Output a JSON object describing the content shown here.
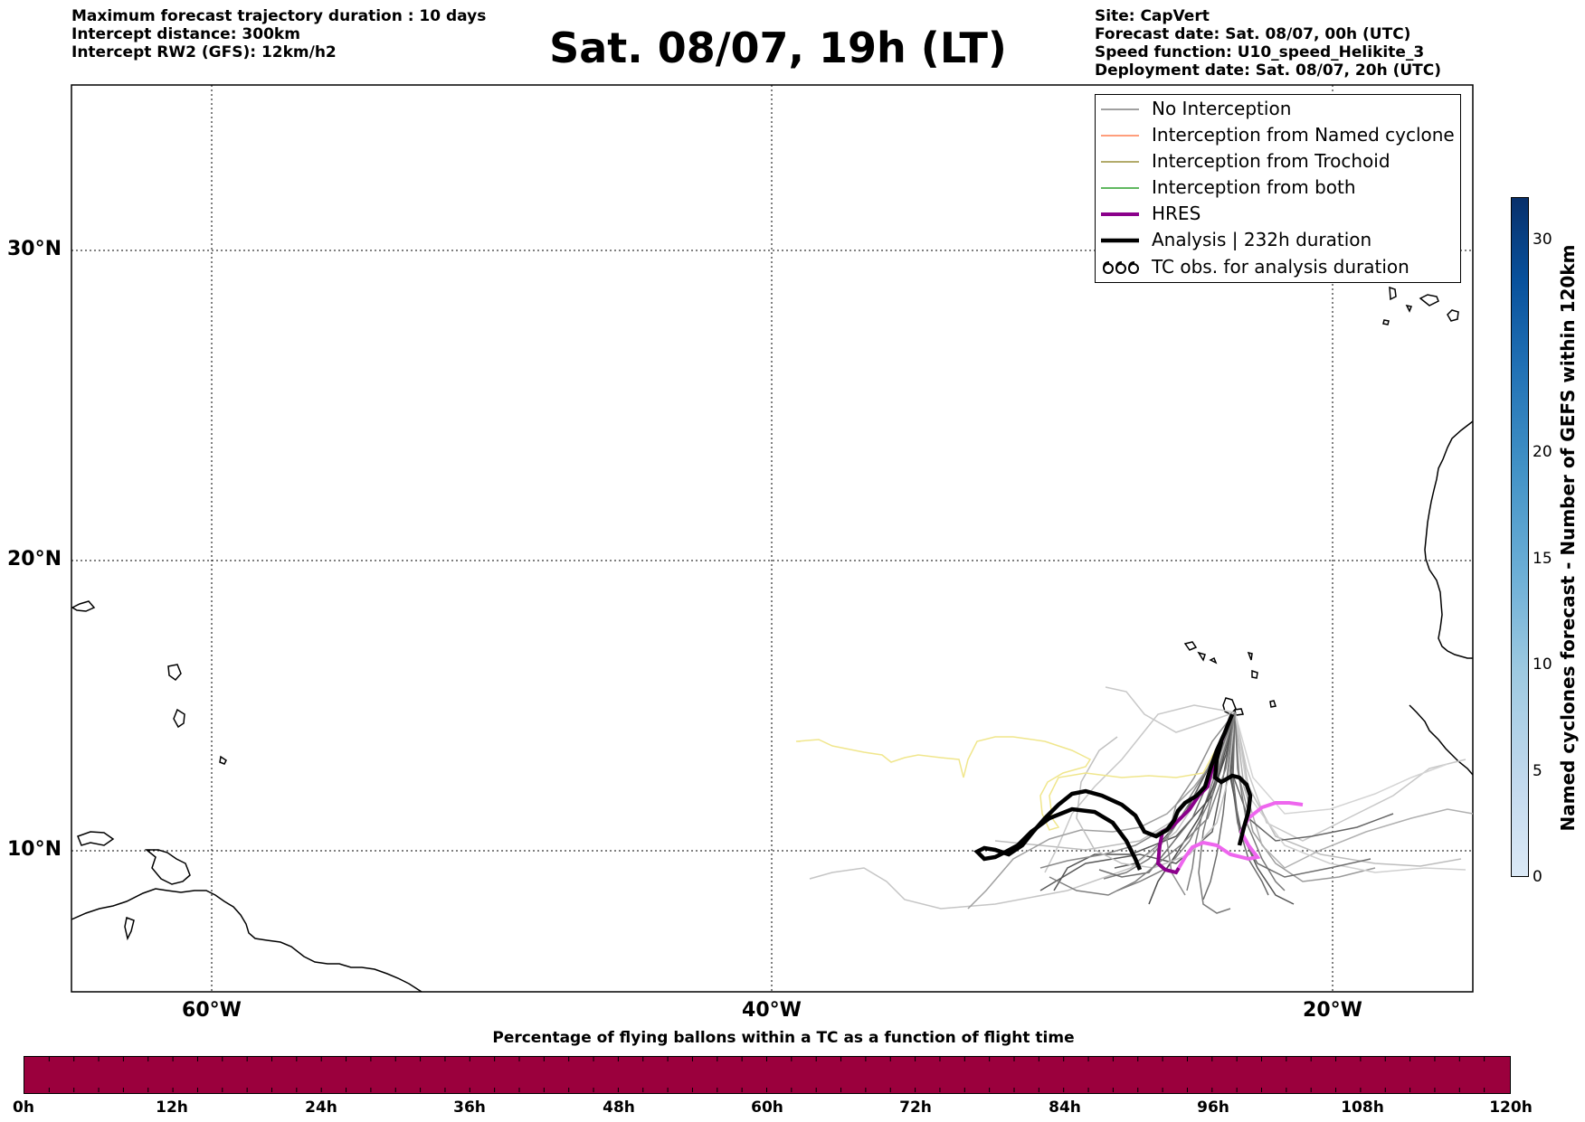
{
  "header": {
    "left": [
      "Maximum forecast trajectory duration : 10 days",
      "Intercept distance: 300km",
      "Intercept RW2 (GFS):  12km/h2"
    ],
    "title": "Sat. 08/07, 19h (LT)",
    "right": [
      "Site: CapVert",
      "Forecast date: Sat. 08/07, 00h (UTC)",
      "Speed function: U10_speed_Helikite_3",
      "Deployment date: Sat. 08/07, 20h (UTC)"
    ]
  },
  "map": {
    "lat_labels": [
      "30°N",
      "20°N",
      "10°N"
    ],
    "lon_labels": [
      "60°W",
      "40°W",
      "20°W"
    ],
    "extent": {
      "lon": [
        -65,
        -15
      ],
      "lat": [
        5.5,
        34.8
      ]
    }
  },
  "legend": [
    {
      "label": "No Interception",
      "color": "#808080",
      "style": "thin"
    },
    {
      "label": "Interception from Named cyclone",
      "color": "#ff7f50",
      "style": "thin"
    },
    {
      "label": "Interception from Trochoid",
      "color": "#9a8f3c",
      "style": "thin"
    },
    {
      "label": "Interception from both",
      "color": "#2ca02c",
      "style": "thin"
    },
    {
      "label": "HRES",
      "color": "#8b008b",
      "style": "thick"
    },
    {
      "label": "Analysis | 232h duration",
      "color": "#000000",
      "style": "thick"
    },
    {
      "label": "TC obs. for analysis duration",
      "color": "#000000",
      "style": "symbol"
    }
  ],
  "colorbar_vertical": {
    "label": "Named cyclones forecast - Number of GEFS within 120km",
    "ticks": [
      "0",
      "5",
      "10",
      "15",
      "20",
      "30"
    ],
    "range": [
      0,
      32
    ]
  },
  "colorbar_horizontal": {
    "label": "Percentage of flying ballons within a TC as a function of flight time",
    "ticks": [
      "0h",
      "12h",
      "24h",
      "36h",
      "48h",
      "60h",
      "72h",
      "84h",
      "96h",
      "108h",
      "120h"
    ],
    "color": "#9b003d"
  }
}
